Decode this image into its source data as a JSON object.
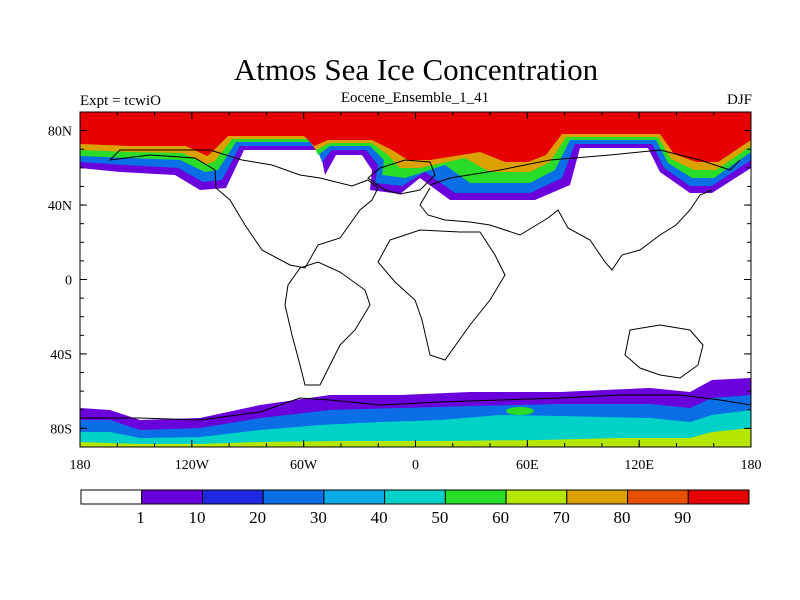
{
  "title": "Atmos Sea Ice Concentration",
  "left_label": "Expt = tcwiO",
  "center_label": "Eocene_Ensemble_1_41",
  "right_label": "DJF",
  "lat_ticks": [
    {
      "value": 80,
      "label": "80N"
    },
    {
      "value": 40,
      "label": "40N"
    },
    {
      "value": 0,
      "label": "0"
    },
    {
      "value": -40,
      "label": "40S"
    },
    {
      "value": -80,
      "label": "80S"
    }
  ],
  "lon_ticks": [
    {
      "value": -180,
      "label": "180"
    },
    {
      "value": -120,
      "label": "120W"
    },
    {
      "value": -60,
      "label": "60W"
    },
    {
      "value": 0,
      "label": "0"
    },
    {
      "value": 60,
      "label": "60E"
    },
    {
      "value": 120,
      "label": "120E"
    },
    {
      "value": 180,
      "label": "180"
    }
  ],
  "colorbar": {
    "colors": [
      "#ffffff",
      "#6a00dc",
      "#1d28e0",
      "#0a6ee6",
      "#0aaae6",
      "#00d2c8",
      "#28dc28",
      "#b4e600",
      "#dca000",
      "#e65000",
      "#e60000"
    ],
    "labels": [
      "1",
      "10",
      "20",
      "30",
      "40",
      "50",
      "60",
      "70",
      "80",
      "90"
    ]
  }
}
